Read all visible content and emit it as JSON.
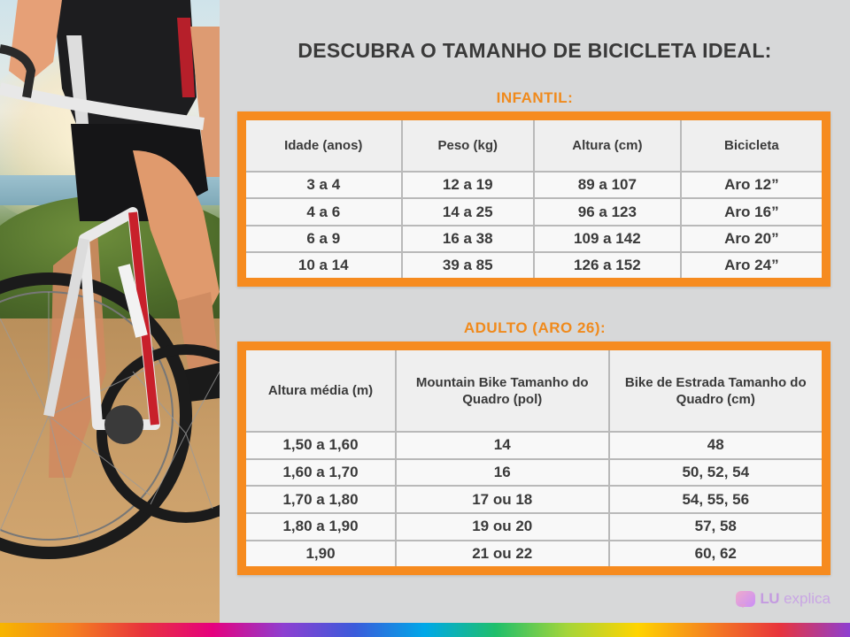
{
  "title": "DESCUBRA O TAMANHO DE BICICLETA IDEAL:",
  "infantil": {
    "heading": "INFANTIL:",
    "headers": [
      "Idade (anos)",
      "Peso (kg)",
      "Altura (cm)",
      "Bicicleta"
    ],
    "rows": [
      [
        "3 a 4",
        "12 a 19",
        "89 a 107",
        "Aro 12”"
      ],
      [
        "4 a 6",
        "14 a 25",
        "96 a 123",
        "Aro 16”"
      ],
      [
        "6 a 9",
        "16 a 38",
        "109 a 142",
        "Aro 20”"
      ],
      [
        "10 a 14",
        "39 a 85",
        "126 a 152",
        "Aro 24”"
      ]
    ]
  },
  "adulto": {
    "heading": "ADULTO (ARO 26):",
    "headers": [
      "Altura média (m)",
      "Mountain Bike Tamanho do Quadro (pol)",
      "Bike de Estrada Tamanho do Quadro (cm)"
    ],
    "rows": [
      [
        "1,50 a 1,60",
        "14",
        "48"
      ],
      [
        "1,60 a 1,70",
        "16",
        "50, 52, 54"
      ],
      [
        "1,70 a 1,80",
        "17 ou 18",
        "54, 55, 56"
      ],
      [
        "1,80 a 1,90",
        "19 ou 20",
        "57, 58"
      ],
      [
        "1,90",
        "21 ou 22",
        "60, 62"
      ]
    ]
  },
  "brand": {
    "lu": "LU",
    "explica": "explica"
  },
  "colors": {
    "accent": "#f68b1f",
    "text": "#3a3a3a"
  }
}
